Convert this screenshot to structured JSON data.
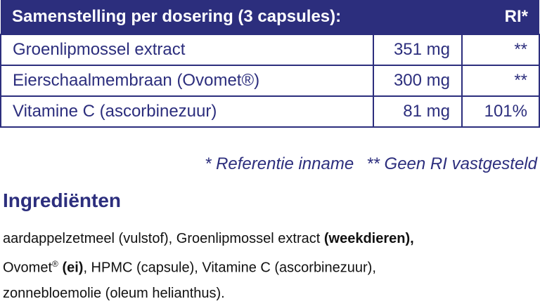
{
  "table": {
    "header": [
      "Samenstelling per dosering (3 capsules):",
      "RI*"
    ],
    "rows": [
      [
        "Groenlipmossel extract",
        "351 mg",
        "**"
      ],
      [
        "Eierschaalmembraan (Ovomet®)",
        "300 mg",
        "**"
      ],
      [
        "Vitamine C (ascorbinezuur)",
        "81 mg",
        "101%"
      ]
    ]
  },
  "footnote": [
    "* Referentie inname",
    "** Geen RI vastgesteld"
  ],
  "ingredients": {
    "title": "Ingrediënten",
    "lines": [
      [
        "aardappelzetmeel (vulstof), Groenlipmossel extract",
        "(weekdieren),"
      ],
      [
        "Ovomet",
        "®",
        "(ei)",
        ", HPMC (capsule), Vitamine C (ascorbinezuur),"
      ],
      [
        "zonnebloemolie (oleum helianthus)."
      ]
    ]
  }
}
